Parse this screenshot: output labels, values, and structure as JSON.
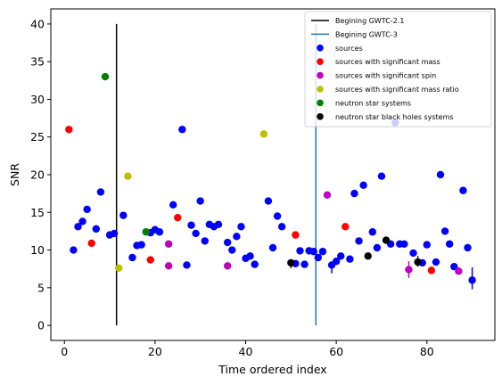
{
  "chart_data": {
    "type": "scatter",
    "xlabel": "Time ordered index",
    "ylabel": "SNR",
    "xlim": [
      -3,
      95
    ],
    "ylim": [
      -2,
      42
    ],
    "xticks": [
      0,
      20,
      40,
      60,
      80
    ],
    "yticks": [
      0,
      5,
      10,
      15,
      20,
      25,
      30,
      35,
      40
    ],
    "grid": false,
    "legend_position": "top-right",
    "vlines": [
      {
        "name": "Begining GWTC-2.1",
        "x": 11.5,
        "y0": 0,
        "y1": 40,
        "color": "#000000"
      },
      {
        "name": "Begining GWTC-3",
        "x": 55.5,
        "y0": 0,
        "y1": 40,
        "color": "#1f77b4"
      }
    ],
    "series": [
      {
        "name": "sources",
        "color": "#0000ff",
        "points": [
          [
            2,
            10.0
          ],
          [
            3,
            13.1
          ],
          [
            4,
            13.8
          ],
          [
            5,
            15.4
          ],
          [
            7,
            12.8
          ],
          [
            8,
            17.7
          ],
          [
            10,
            12.0
          ],
          [
            11,
            12.2
          ],
          [
            13,
            14.6
          ],
          [
            15,
            9.0
          ],
          [
            16,
            10.6
          ],
          [
            17,
            10.7
          ],
          [
            19,
            12.3
          ],
          [
            20,
            12.7
          ],
          [
            21,
            12.4
          ],
          [
            24,
            16.0
          ],
          [
            26,
            26.0
          ],
          [
            27,
            8.0
          ],
          [
            28,
            13.3
          ],
          [
            29,
            12.2
          ],
          [
            30,
            16.5
          ],
          [
            31,
            11.2
          ],
          [
            32,
            13.4
          ],
          [
            33,
            13.1
          ],
          [
            34,
            13.4
          ],
          [
            36,
            11.0
          ],
          [
            37,
            10.0
          ],
          [
            38,
            11.8
          ],
          [
            39,
            13.1
          ],
          [
            40,
            8.9
          ],
          [
            41,
            9.2
          ],
          [
            42,
            8.1
          ],
          [
            45,
            16.5
          ],
          [
            46,
            10.3
          ],
          [
            47,
            14.5
          ],
          [
            48,
            13.1
          ],
          [
            51,
            8.2
          ],
          [
            52,
            9.9
          ],
          [
            53,
            8.1
          ],
          [
            54,
            9.9
          ],
          [
            55,
            9.8
          ],
          [
            56,
            9.0
          ],
          [
            57,
            9.8
          ],
          [
            59,
            8.0
          ],
          [
            60,
            8.5
          ],
          [
            61,
            9.2
          ],
          [
            63,
            8.8
          ],
          [
            64,
            17.5
          ],
          [
            65,
            11.2
          ],
          [
            66,
            18.6
          ],
          [
            68,
            12.4
          ],
          [
            69,
            10.3
          ],
          [
            70,
            19.8
          ],
          [
            72,
            10.8
          ],
          [
            73,
            26.9
          ],
          [
            74,
            10.8
          ],
          [
            75,
            10.8
          ],
          [
            77,
            9.6
          ],
          [
            79,
            8.3
          ],
          [
            80,
            10.7
          ],
          [
            82,
            8.4
          ],
          [
            83,
            20.0
          ],
          [
            84,
            12.5
          ],
          [
            85,
            10.8
          ],
          [
            86,
            7.8
          ],
          [
            88,
            17.9
          ],
          [
            89,
            10.3
          ],
          [
            90,
            6.0
          ]
        ]
      },
      {
        "name": "sources with significant mass",
        "color": "#ff0000",
        "points": [
          [
            1,
            26.0
          ],
          [
            6,
            10.9
          ],
          [
            19,
            8.7
          ],
          [
            25,
            14.3
          ],
          [
            51,
            12.0
          ],
          [
            62,
            13.1
          ],
          [
            81,
            7.3
          ]
        ]
      },
      {
        "name": "sources with significant spin",
        "color": "#bf00bf",
        "points": [
          [
            23,
            10.8
          ],
          [
            23,
            7.9
          ],
          [
            36,
            7.9
          ],
          [
            58,
            17.3
          ],
          [
            76,
            7.4
          ],
          [
            87,
            7.2
          ]
        ]
      },
      {
        "name": "sources with significant mass ratio",
        "color": "#bfbf00",
        "points": [
          [
            12,
            7.6
          ],
          [
            14,
            19.8
          ],
          [
            44,
            25.4
          ]
        ]
      },
      {
        "name": "neutron star systems",
        "color": "#008000",
        "points": [
          [
            9,
            33.0
          ],
          [
            18,
            12.4
          ]
        ]
      },
      {
        "name": "neutron star black holes systems",
        "color": "#000000",
        "points": [
          [
            50,
            8.3
          ],
          [
            67,
            9.2
          ],
          [
            71,
            11.3
          ],
          [
            78,
            8.4
          ]
        ]
      }
    ],
    "error_bars": [
      {
        "x": 90,
        "y0": 4.8,
        "y1": 7.7,
        "color": "#0000ff"
      },
      {
        "x": 76,
        "y0": 6.3,
        "y1": 8.5,
        "color": "#bf00bf"
      },
      {
        "x": 59,
        "y0": 6.9,
        "y1": 8.4,
        "color": "#0000ff"
      },
      {
        "x": 50,
        "y0": 7.6,
        "y1": 8.7,
        "color": "#000000"
      },
      {
        "x": 78,
        "y0": 7.8,
        "y1": 9.2,
        "color": "#000000"
      }
    ]
  }
}
